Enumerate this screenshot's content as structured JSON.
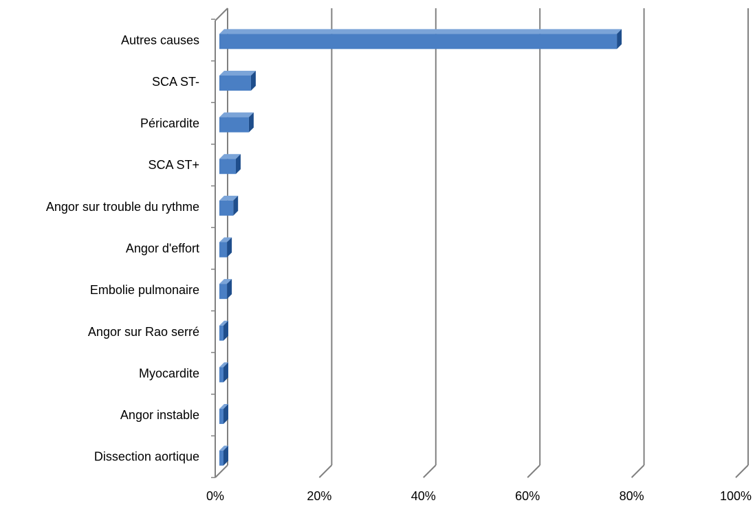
{
  "chart_data": {
    "type": "bar",
    "orientation": "horizontal",
    "style": "3d",
    "categories": [
      "Autres causes",
      "SCA ST-",
      "Péricardite",
      "SCA ST+",
      "Angor sur trouble du rythme",
      "Angor d'effort",
      "Embolie pulmonaire",
      "Angor sur Rao serré",
      "Myocardite",
      "Angor instable",
      "Dissection aortique"
    ],
    "values": [
      76.5,
      6.2,
      5.8,
      3.3,
      2.8,
      1.6,
      1.6,
      0.8,
      0.6,
      0.6,
      0.4
    ],
    "xlim": [
      0,
      100
    ],
    "xticks": [
      "0%",
      "20%",
      "40%",
      "60%",
      "80%",
      "100%"
    ],
    "title": "",
    "xlabel": "",
    "ylabel": "",
    "grid": true,
    "legend": "none",
    "colors": {
      "bar_front": "#4a7fc4",
      "bar_top": "#7ba4d8",
      "bar_side": "#1f4e8c",
      "grid": "#808080"
    }
  }
}
